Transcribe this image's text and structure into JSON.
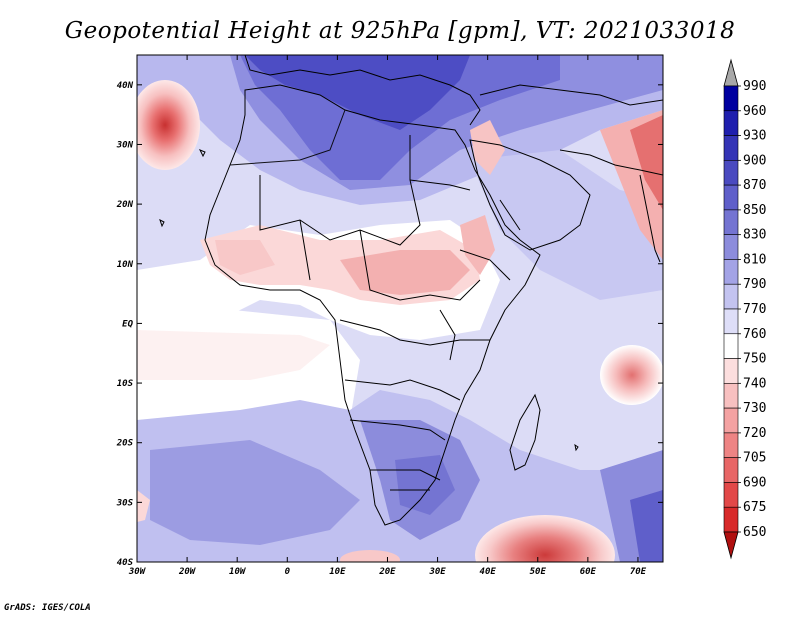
{
  "title": "Geopotential Height at 925hPa [gpm], VT: 2021033018",
  "credit": "GrADS: IGES/COLA",
  "map": {
    "variable": "Geopotential Height",
    "level": "925hPa",
    "units": "gpm",
    "valid_time": "2021033018",
    "lon_range": [
      -30,
      75
    ],
    "lat_range": [
      -40,
      45
    ],
    "lon_ticks": [
      "30W",
      "20W",
      "10W",
      "0",
      "10E",
      "20E",
      "30E",
      "40E",
      "50E",
      "60E",
      "70E"
    ],
    "lat_ticks": [
      "40N",
      "30N",
      "20N",
      "10N",
      "EQ",
      "10S",
      "20S",
      "30S",
      "40S"
    ]
  },
  "colorbar": {
    "levels": [
      "990",
      "960",
      "930",
      "900",
      "870",
      "850",
      "830",
      "810",
      "790",
      "770",
      "760",
      "750",
      "740",
      "730",
      "720",
      "705",
      "690",
      "675",
      "650"
    ],
    "colors": [
      "#0000a0",
      "#1f1fae",
      "#3434b6",
      "#4a4ac0",
      "#5f5fca",
      "#7474d2",
      "#8c8cdc",
      "#a3a3e6",
      "#c3c3f0",
      "#dedef8",
      "#ffffff",
      "#fcdede",
      "#f8c0c0",
      "#f4a2a2",
      "#ee8484",
      "#e86666",
      "#e24848",
      "#d82a2a",
      "#c81818"
    ],
    "over_color": "#a8a8a8",
    "under_color": "#b01010"
  }
}
